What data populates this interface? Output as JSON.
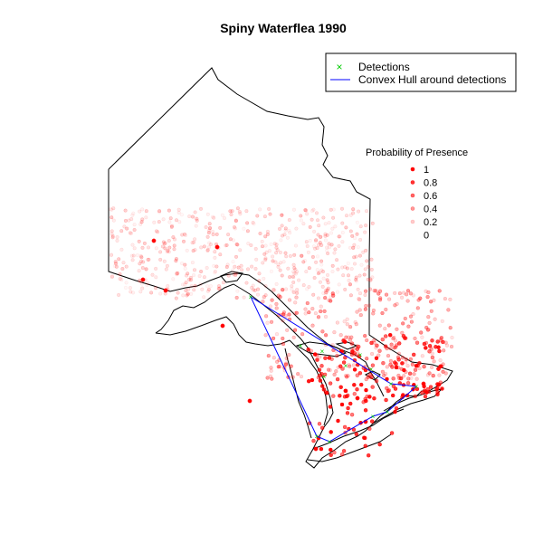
{
  "title": "Spiny Waterflea 1990",
  "legend": {
    "items": [
      {
        "label": "Detections",
        "symbol": "x",
        "color": "#00cc00"
      },
      {
        "label": "Convex Hull around detections",
        "symbol": "line",
        "color": "#0000ff"
      }
    ]
  },
  "probability_legend": {
    "title": "Probability of Presence",
    "levels": [
      {
        "label": "1",
        "value": 1.0
      },
      {
        "label": "0.8",
        "value": 0.8
      },
      {
        "label": "0.6",
        "value": 0.6
      },
      {
        "label": "0.4",
        "value": 0.4
      },
      {
        "label": "0.2",
        "value": 0.2
      },
      {
        "label": "0",
        "value": 0.0
      }
    ]
  },
  "colors": {
    "presence": "#ff0000",
    "hull": "#0000ff",
    "detection": "#00cc00",
    "outline": "#000000"
  }
}
